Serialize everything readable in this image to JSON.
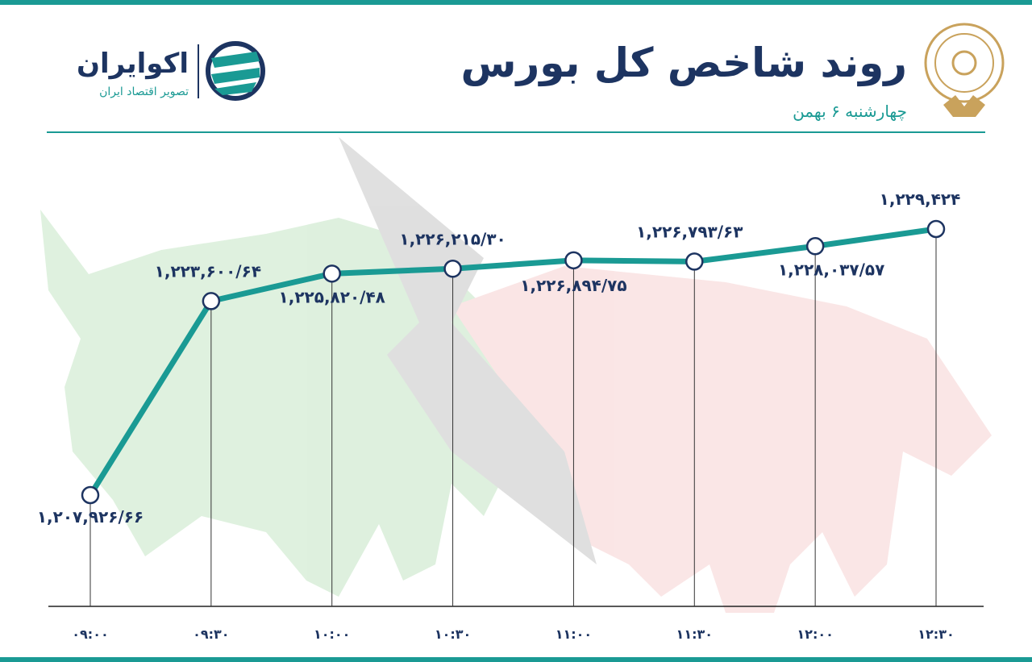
{
  "chart_data": {
    "type": "line",
    "title": "روند شاخص کل بورس",
    "subtitle": "چهارشنبه ۶ بهمن",
    "brand": "اکوایران",
    "tagline": "تصویر اقتصاد ایران",
    "categories": [
      "۰۹:۰۰",
      "۰۹:۳۰",
      "۱۰:۰۰",
      "۱۰:۳۰",
      "۱۱:۰۰",
      "۱۱:۳۰",
      "۱۲:۰۰",
      "۱۲:۳۰"
    ],
    "values": [
      1207926.66,
      1223600.64,
      1225820.48,
      1226215.3,
      1226894.75,
      1226793.63,
      1228037.57,
      1229424
    ],
    "value_labels": [
      "۱,۲۰۷,۹۲۶/۶۶",
      "۱,۲۲۳,۶۰۰/۶۴",
      "۱,۲۲۵,۸۲۰/۴۸",
      "۱,۲۲۶,۲۱۵/۳۰",
      "۱,۲۲۶,۸۹۴/۷۵",
      "۱,۲۲۶,۷۹۳/۶۳",
      "۱,۲۲۸,۰۳۷/۵۷",
      "۱,۲۲۹,۴۲۴"
    ],
    "color": "#1a9a94"
  }
}
